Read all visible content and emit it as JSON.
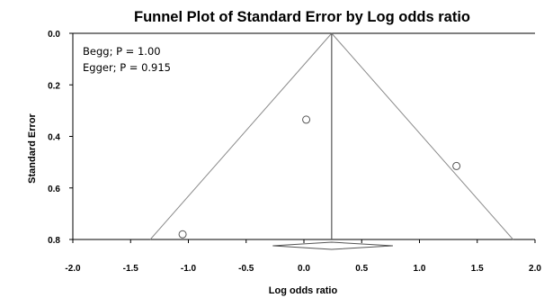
{
  "chart_data": {
    "type": "scatter",
    "title": "Funnel Plot of Standard Error by Log odds ratio",
    "xlabel": "Log odds ratio",
    "ylabel": "Standard Error",
    "xlim": [
      -2.0,
      2.0
    ],
    "ylim": [
      0.0,
      0.8
    ],
    "y_inverted": true,
    "x_ticks": [
      "-2.0",
      "-1.5",
      "-1.0",
      "-0.5",
      "0.0",
      "0.5",
      "1.0",
      "1.5",
      "2.0"
    ],
    "x_tick_values": [
      -2.0,
      -1.5,
      -1.0,
      -0.5,
      0.0,
      0.5,
      1.0,
      1.5,
      2.0
    ],
    "y_ticks": [
      "0.0",
      "0.2",
      "0.4",
      "0.6",
      "0.8"
    ],
    "y_tick_values": [
      0.0,
      0.2,
      0.4,
      0.6,
      0.8
    ],
    "grid": false,
    "points": [
      {
        "x": 0.02,
        "y": 0.335
      },
      {
        "x": 1.32,
        "y": 0.515
      },
      {
        "x": -1.05,
        "y": 0.78
      }
    ],
    "pooled_estimate": 0.24,
    "funnel_apex": {
      "x": 0.24,
      "y": 0.0
    },
    "funnel_base": {
      "left_x": -1.33,
      "right_x": 1.81,
      "y": 0.8
    },
    "summary_diamond": {
      "center": 0.24,
      "lower": -0.27,
      "upper": 0.77
    },
    "annotations": [
      "Begg; P = 1.00",
      "Egger; P = 0.915"
    ]
  }
}
